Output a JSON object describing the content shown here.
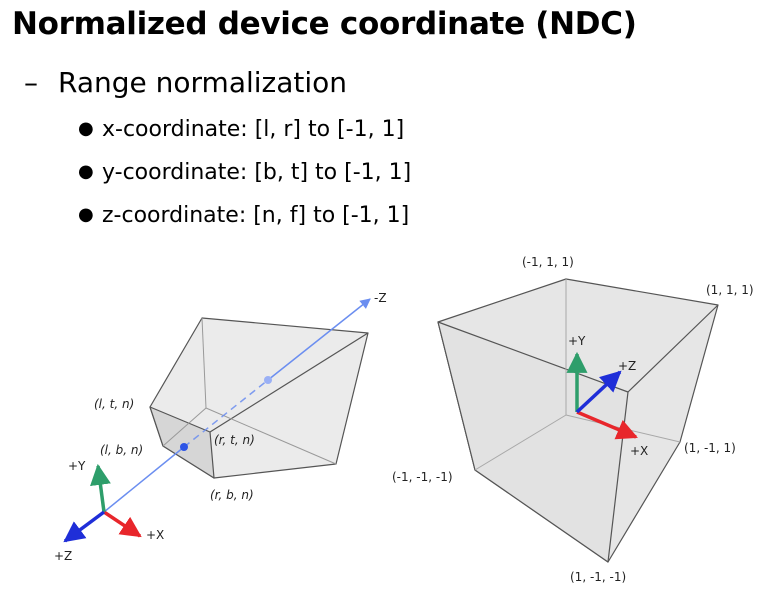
{
  "title": "Normalized device coordinate (NDC)",
  "subheading": {
    "dash": "–",
    "text": "Range normalization"
  },
  "bullets": [
    "x-coordinate: [l, r] to [-1, 1]",
    "y-coordinate: [b, t] to [-1, 1]",
    "z-coordinate: [n, f] to [-1, 1]"
  ],
  "frustum": {
    "corners": {
      "ltn": "(l, t, n)",
      "lbn": "(l, b, n)",
      "rtn": "(r, t, n)",
      "rbn": "(r, b, n)"
    },
    "axes": {
      "neg_z": "-Z",
      "y": "+Y",
      "x": "+X",
      "z": "+Z"
    }
  },
  "cube": {
    "corners": {
      "c1": "(-1, 1, 1)",
      "c2": "(1, 1, 1)",
      "c3": "(1, -1, 1)",
      "c4": "(-1, -1, -1)",
      "c5": "(1, -1, -1)"
    },
    "axes": {
      "y": "+Y",
      "z": "+Z",
      "x": "+X"
    }
  },
  "colors": {
    "x_axis": "#e8262b",
    "y_axis": "#2e9e6b",
    "z_axis": "#1f2ed8",
    "view_ray": "#6b8ef0"
  }
}
